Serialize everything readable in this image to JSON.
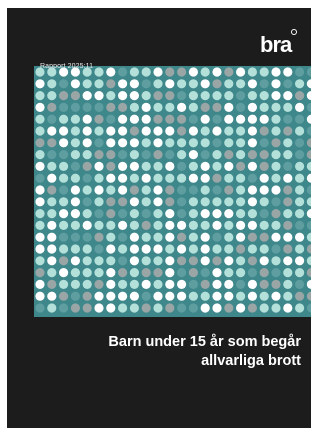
{
  "report": {
    "publisher_logo": "brå",
    "report_number": "Rapport 2025:11",
    "title_line1": "Barn under 15 år som begår",
    "title_line2": "allvarliga brott"
  },
  "colors": {
    "cover_background": "#1c1c1c",
    "dot_panel": "#3e878b",
    "dot_white": "#ffffff",
    "dot_mint": "#b4e0da",
    "dot_gray": "#9aa5a6",
    "dot_teal": "#5f9ea0"
  }
}
